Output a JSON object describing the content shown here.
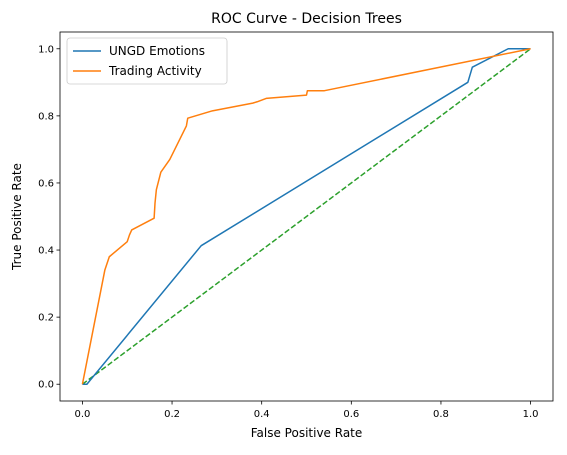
{
  "chart_data": {
    "type": "line",
    "title": "ROC Curve - Decision Trees",
    "xlabel": "False Positive Rate",
    "ylabel": "True Positive Rate",
    "xlim": [
      -0.05,
      1.05
    ],
    "ylim": [
      -0.05,
      1.05
    ],
    "xticks": [
      0.0,
      0.2,
      0.4,
      0.6,
      0.8,
      1.0
    ],
    "yticks": [
      0.0,
      0.2,
      0.4,
      0.6,
      0.8,
      1.0
    ],
    "xtick_labels": [
      "0.0",
      "0.2",
      "0.4",
      "0.6",
      "0.8",
      "1.0"
    ],
    "ytick_labels": [
      "0.0",
      "0.2",
      "0.4",
      "0.6",
      "0.8",
      "1.0"
    ],
    "grid": false,
    "legend": "top-left",
    "series": [
      {
        "name": "UNGD Emotions",
        "color": "#1f77b4",
        "style": "solid",
        "x": [
          0.0,
          0.01,
          0.265,
          0.86,
          0.87,
          0.95,
          1.0
        ],
        "y": [
          0.0,
          0.0,
          0.413,
          0.9,
          0.945,
          1.0,
          1.0
        ]
      },
      {
        "name": "Trading Activity",
        "color": "#ff7f0e",
        "style": "solid",
        "x": [
          0.0,
          0.05,
          0.06,
          0.1,
          0.105,
          0.11,
          0.16,
          0.162,
          0.165,
          0.175,
          0.195,
          0.232,
          0.235,
          0.29,
          0.38,
          0.39,
          0.41,
          0.5,
          0.502,
          0.54,
          1.0
        ],
        "y": [
          0.0,
          0.34,
          0.38,
          0.425,
          0.445,
          0.46,
          0.495,
          0.54,
          0.58,
          0.632,
          0.67,
          0.77,
          0.793,
          0.815,
          0.838,
          0.842,
          0.852,
          0.862,
          0.875,
          0.875,
          1.0
        ]
      },
      {
        "color": "#2ca02c",
        "style": "dashed",
        "x": [
          0.0,
          1.0
        ],
        "y": [
          0.0,
          1.0
        ]
      }
    ]
  }
}
